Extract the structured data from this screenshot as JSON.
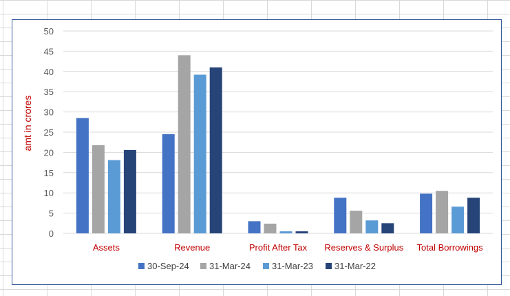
{
  "chart_data": {
    "type": "bar",
    "title": "",
    "xlabel": "",
    "ylabel": "amt in crores",
    "ylim": [
      0,
      50
    ],
    "yticks": [
      0,
      5,
      10,
      15,
      20,
      25,
      30,
      35,
      40,
      45,
      50
    ],
    "grid": true,
    "legend_position": "bottom",
    "categories": [
      "Assets",
      "Revenue",
      "Profit After Tax",
      "Reserves & Surplus",
      "Total Borrowings"
    ],
    "series": [
      {
        "name": "30-Sep-24",
        "color": "#4472c4",
        "values": [
          28.5,
          24.5,
          3.0,
          8.8,
          9.8
        ]
      },
      {
        "name": "31-Mar-24",
        "color": "#a5a5a5",
        "values": [
          21.8,
          44.0,
          2.4,
          5.6,
          10.5
        ]
      },
      {
        "name": "31-Mar-23",
        "color": "#5b9bd5",
        "values": [
          18.1,
          39.2,
          0.5,
          3.2,
          6.6
        ]
      },
      {
        "name": "31-Mar-22",
        "color": "#264478",
        "values": [
          20.6,
          41.0,
          0.5,
          2.5,
          8.8
        ]
      }
    ],
    "colors": {
      "category_label": "#c00000",
      "axis_title": "#c00000",
      "gridline": "#d9d9d9",
      "frame": "#2f5597"
    }
  }
}
